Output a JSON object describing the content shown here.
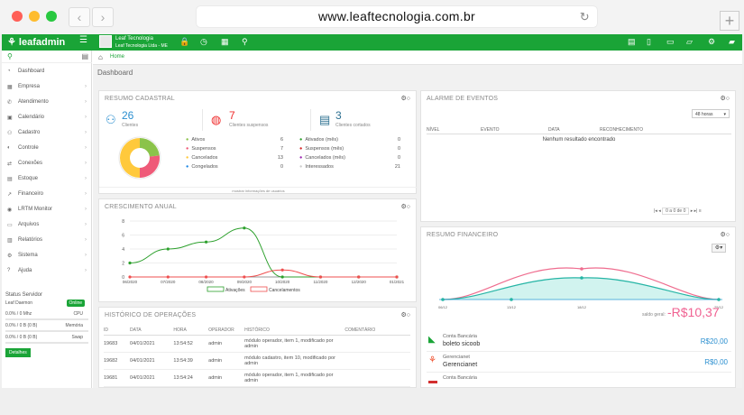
{
  "browser": {
    "url": "www.leaftecnologia.com.br",
    "back": "‹",
    "forward": "›",
    "new_tab": "+"
  },
  "colors": {
    "green": "#1aa437",
    "red": "#ef2c2c",
    "blue": "#2b8fd0",
    "orange": "#f28b38"
  },
  "topbar": {
    "logo": "leafadmin",
    "account_name": "Leaf Tecnologia",
    "account_sub": "Leaf Tecnologia Ltda - ME"
  },
  "sidebar": {
    "items": [
      "Dashboard",
      "Empresa",
      "Atendimento",
      "Calendário",
      "Cadastro",
      "Controle",
      "Conexões",
      "Estoque",
      "Financeiro",
      "LRTM Monitor",
      "Arquivos",
      "Relatórios",
      "Sistema",
      "Ajuda"
    ],
    "status_title": "Status Servidor",
    "daemon": "Leaf Daemon",
    "online": "Online",
    "cpu": "0.0% / 0 Mhz",
    "cpu_label": "CPU",
    "mem": "0.0% / 0 B (0 B)",
    "mem_label": "Memória",
    "swap": "0.0% / 0 B (0 B)",
    "swap_label": "Swap",
    "details": "Detalhes"
  },
  "breadcrumb": {
    "home": "Home"
  },
  "page_title": "Dashboard",
  "resumo": {
    "title": "RESUMO CADASTRAL",
    "clients": "26",
    "clients_label": "Clientes",
    "suspended": "7",
    "suspended_label": "Clientes suspensos",
    "cut": "3",
    "cut_label": "Clientes cortados",
    "left": [
      {
        "label": "Ativos",
        "value": "6",
        "color": "#8bc34a"
      },
      {
        "label": "Suspensos",
        "value": "7",
        "color": "#ef5a78"
      },
      {
        "label": "Cancelados",
        "value": "13",
        "color": "#ffc93c"
      },
      {
        "label": "Congelados",
        "value": "0",
        "color": "#1e88e5"
      }
    ],
    "right": [
      {
        "label": "Ativados (mês)",
        "value": "0",
        "color": "#2ca02c"
      },
      {
        "label": "Suspensos (mês)",
        "value": "0",
        "color": "#d62728"
      },
      {
        "label": "Cancelados (mês)",
        "value": "0",
        "color": "#9b27b0"
      },
      {
        "label": "Interessados",
        "value": "21",
        "color": "#cccccc"
      }
    ],
    "more": "mostrar informações de usuários"
  },
  "alarme": {
    "title": "ALARME DE EVENTOS",
    "select": "48 horas",
    "cols": [
      "NÍVEL",
      "EVENTO",
      "DATA",
      "RECONHECIMENTO"
    ],
    "empty": "Nenhum resultado encontrado",
    "pager": "0 a 0 de 0"
  },
  "crescimento": {
    "title": "CRESCIMENTO ANUAL"
  },
  "chart_data": {
    "type": "line",
    "x": [
      "06/2020",
      "07/2020",
      "08/2020",
      "09/2020",
      "10/2020",
      "11/2020",
      "12/2020",
      "01/2021"
    ],
    "ylim": [
      0,
      8
    ],
    "yticks": [
      "0",
      "2",
      "4",
      "6",
      "8"
    ],
    "series": [
      {
        "name": "Ativações",
        "values": [
          2,
          4,
          5,
          7,
          0,
          0,
          0,
          0
        ],
        "color": "#2ca02c"
      },
      {
        "name": "Cancelamentos",
        "values": [
          0,
          0,
          0,
          0,
          1,
          0,
          0,
          0
        ],
        "color": "#ef4f4f"
      }
    ]
  },
  "historico": {
    "title": "HISTÓRICO DE OPERAÇÕES",
    "cols": [
      "ID",
      "DATA",
      "HORA",
      "OPERADOR",
      "HISTÓRICO",
      "COMENTÁRIO"
    ],
    "rows": [
      [
        "19683",
        "04/01/2021",
        "13:54:52",
        "admin",
        "módulo operador, item 1, modificado por admin"
      ],
      [
        "19682",
        "04/01/2021",
        "13:54:39",
        "admin",
        "módulo cadastro, item 10, modificado por admin"
      ],
      [
        "19681",
        "04/01/2021",
        "13:54:24",
        "admin",
        "módulo operador, item 1, modificado por admin"
      ]
    ]
  },
  "financeiro": {
    "title": "RESUMO FINANCEIRO",
    "x": [
      "06/12",
      "13/12",
      "18/12",
      "25/12"
    ],
    "saldo_label": "saldo geral:",
    "saldo": "-R$10,37",
    "accounts": [
      {
        "type": "Conta Bancária",
        "name": "boleto sicoob",
        "value": "R$20,00"
      },
      {
        "type": "Gerencianet",
        "name": "Gerencianet",
        "value": "R$0,00"
      },
      {
        "type": "Conta Bancária",
        "name": "",
        "value": ""
      }
    ]
  }
}
